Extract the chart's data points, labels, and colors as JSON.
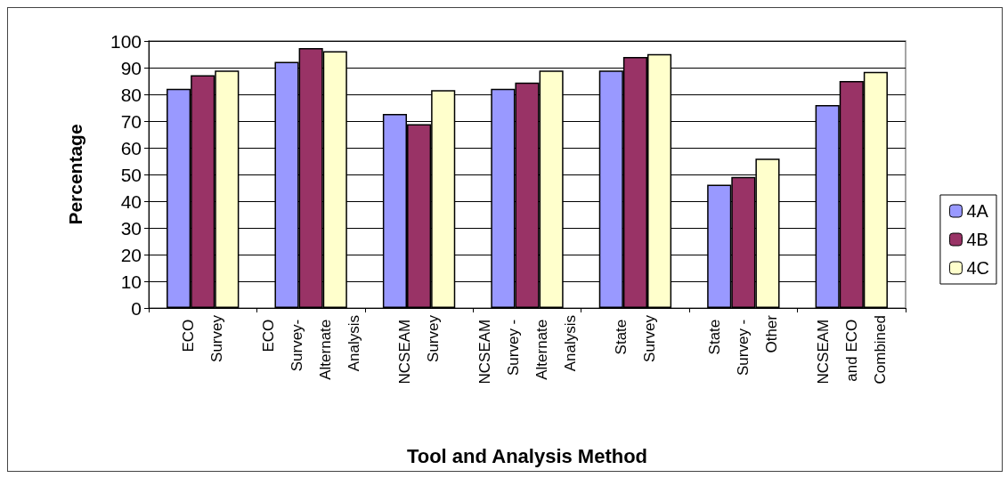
{
  "chart_data": {
    "type": "bar",
    "xlabel": "Tool and Analysis Method",
    "ylabel": "Percentage",
    "categories": [
      "ECO Survey",
      "ECO Survey- Alternate Analysis",
      "NCSEAM Survey",
      "NCSEAM Survey - Alternate Analysis",
      "State Survey",
      "State Survey - Other",
      "NCSEAM and ECO Combined"
    ],
    "series": [
      {
        "name": "4A",
        "color": "#9999ff",
        "values": [
          82.1,
          92.2,
          72.7,
          82.1,
          88.9,
          46.2,
          76.0
        ]
      },
      {
        "name": "4B",
        "color": "#993366",
        "values": [
          87.2,
          97.3,
          68.8,
          84.4,
          94.0,
          49.1,
          85.0
        ]
      },
      {
        "name": "4C",
        "color": "#ffffcc",
        "values": [
          88.9,
          96.2,
          81.6,
          88.9,
          95.1,
          55.9,
          88.4
        ]
      }
    ],
    "ylim": [
      0,
      100
    ],
    "yticks": [
      0,
      10,
      20,
      30,
      40,
      50,
      60,
      70,
      80,
      90,
      100
    ],
    "grid": "y",
    "legend": "right"
  }
}
